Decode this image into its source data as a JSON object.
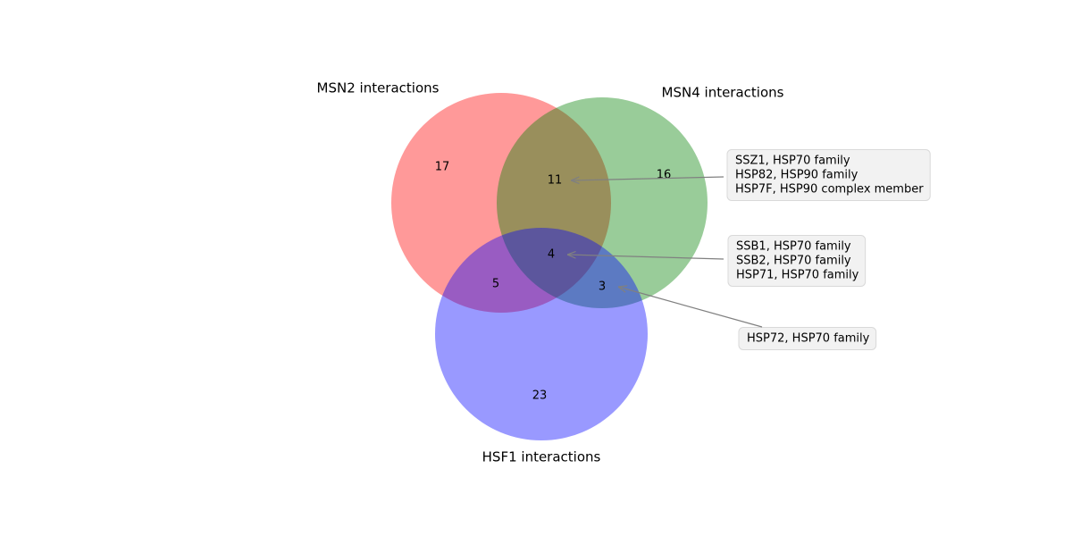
{
  "chart_data": {
    "type": "venn",
    "sets": [
      {
        "name": "MSN2 interactions",
        "color": "#ff0000"
      },
      {
        "name": "MSN4 interactions",
        "color": "#008000"
      },
      {
        "name": "HSF1 interactions",
        "color": "#0000ff"
      }
    ],
    "alpha": 0.4,
    "regions": [
      {
        "value": 17
      },
      {
        "value": 16
      },
      {
        "value": 11,
        "annotation": [
          "SSZ1, HSP70 family",
          "HSP82, HSP90 family",
          "HSP7F, HSP90 complex member"
        ]
      },
      {
        "value": 23
      },
      {
        "value": 5
      },
      {
        "value": 3,
        "annotation": [
          "HSP72, HSP70 family"
        ]
      },
      {
        "value": 4,
        "annotation": [
          "SSB1, HSP70 family",
          "SSB2, HSP70 family",
          "HSP71, HSP70 family"
        ]
      }
    ]
  }
}
